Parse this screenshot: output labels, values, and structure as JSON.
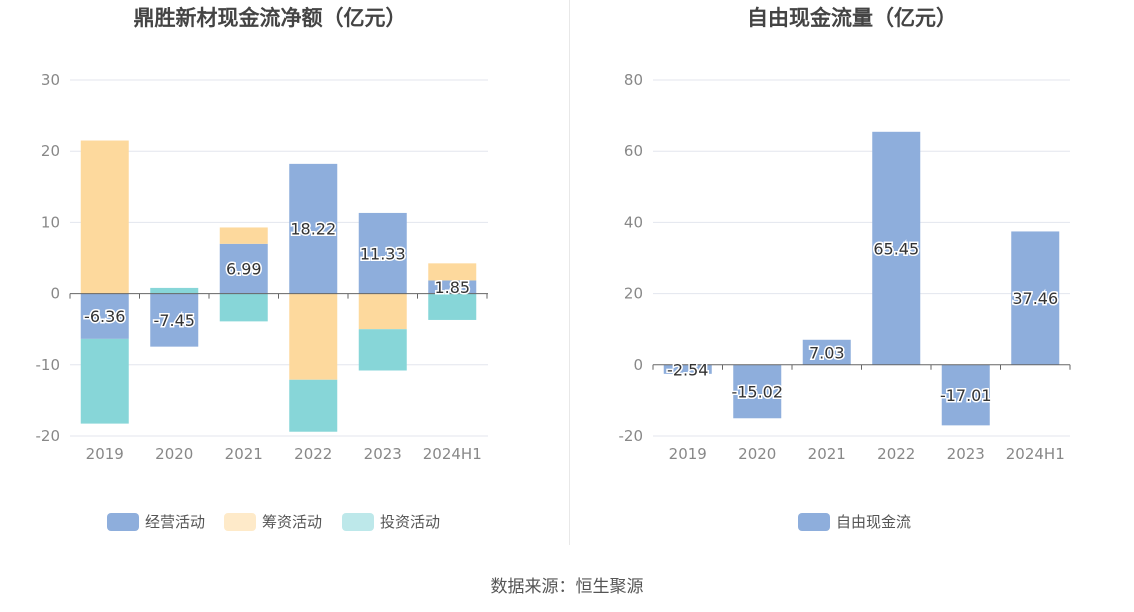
{
  "source": "数据来源：恒生聚源",
  "colors": {
    "operating": "#8eaedc",
    "financing": "#fdd99d",
    "investing": "#87d6d8",
    "fcf": "#8eaedc",
    "grid": "#e3e6ee",
    "axis": "#666666",
    "tick": "#888888",
    "title": "#444444"
  },
  "chart_data": [
    {
      "type": "bar",
      "stacked": true,
      "title": "鼎胜新材现金流净额（亿元）",
      "categories": [
        "2019",
        "2020",
        "2021",
        "2022",
        "2023",
        "2024H1"
      ],
      "ylim": [
        -20,
        30
      ],
      "yticks": [
        -20,
        -10,
        0,
        10,
        20,
        30
      ],
      "series": [
        {
          "name": "经营活动",
          "key": "operating",
          "values": [
            -6.36,
            -7.45,
            6.99,
            18.22,
            11.33,
            1.85
          ],
          "show_labels": true
        },
        {
          "name": "筹资活动",
          "key": "financing",
          "values": [
            21.5,
            0.0,
            2.3,
            -12.1,
            -5.0,
            2.4
          ],
          "show_labels": false
        },
        {
          "name": "投资活动",
          "key": "investing",
          "values": [
            -11.9,
            0.8,
            -3.9,
            -7.3,
            -5.8,
            -3.7
          ],
          "show_labels": false
        }
      ],
      "legend": "bottom"
    },
    {
      "type": "bar",
      "title": "自由现金流量（亿元）",
      "categories": [
        "2019",
        "2020",
        "2021",
        "2022",
        "2023",
        "2024H1"
      ],
      "ylim": [
        -20,
        80
      ],
      "yticks": [
        -20,
        0,
        20,
        40,
        60,
        80
      ],
      "series": [
        {
          "name": "自由现金流",
          "key": "fcf",
          "values": [
            -2.54,
            -15.02,
            7.03,
            65.45,
            -17.01,
            37.46
          ],
          "show_labels": true
        }
      ],
      "legend": "bottom"
    }
  ]
}
